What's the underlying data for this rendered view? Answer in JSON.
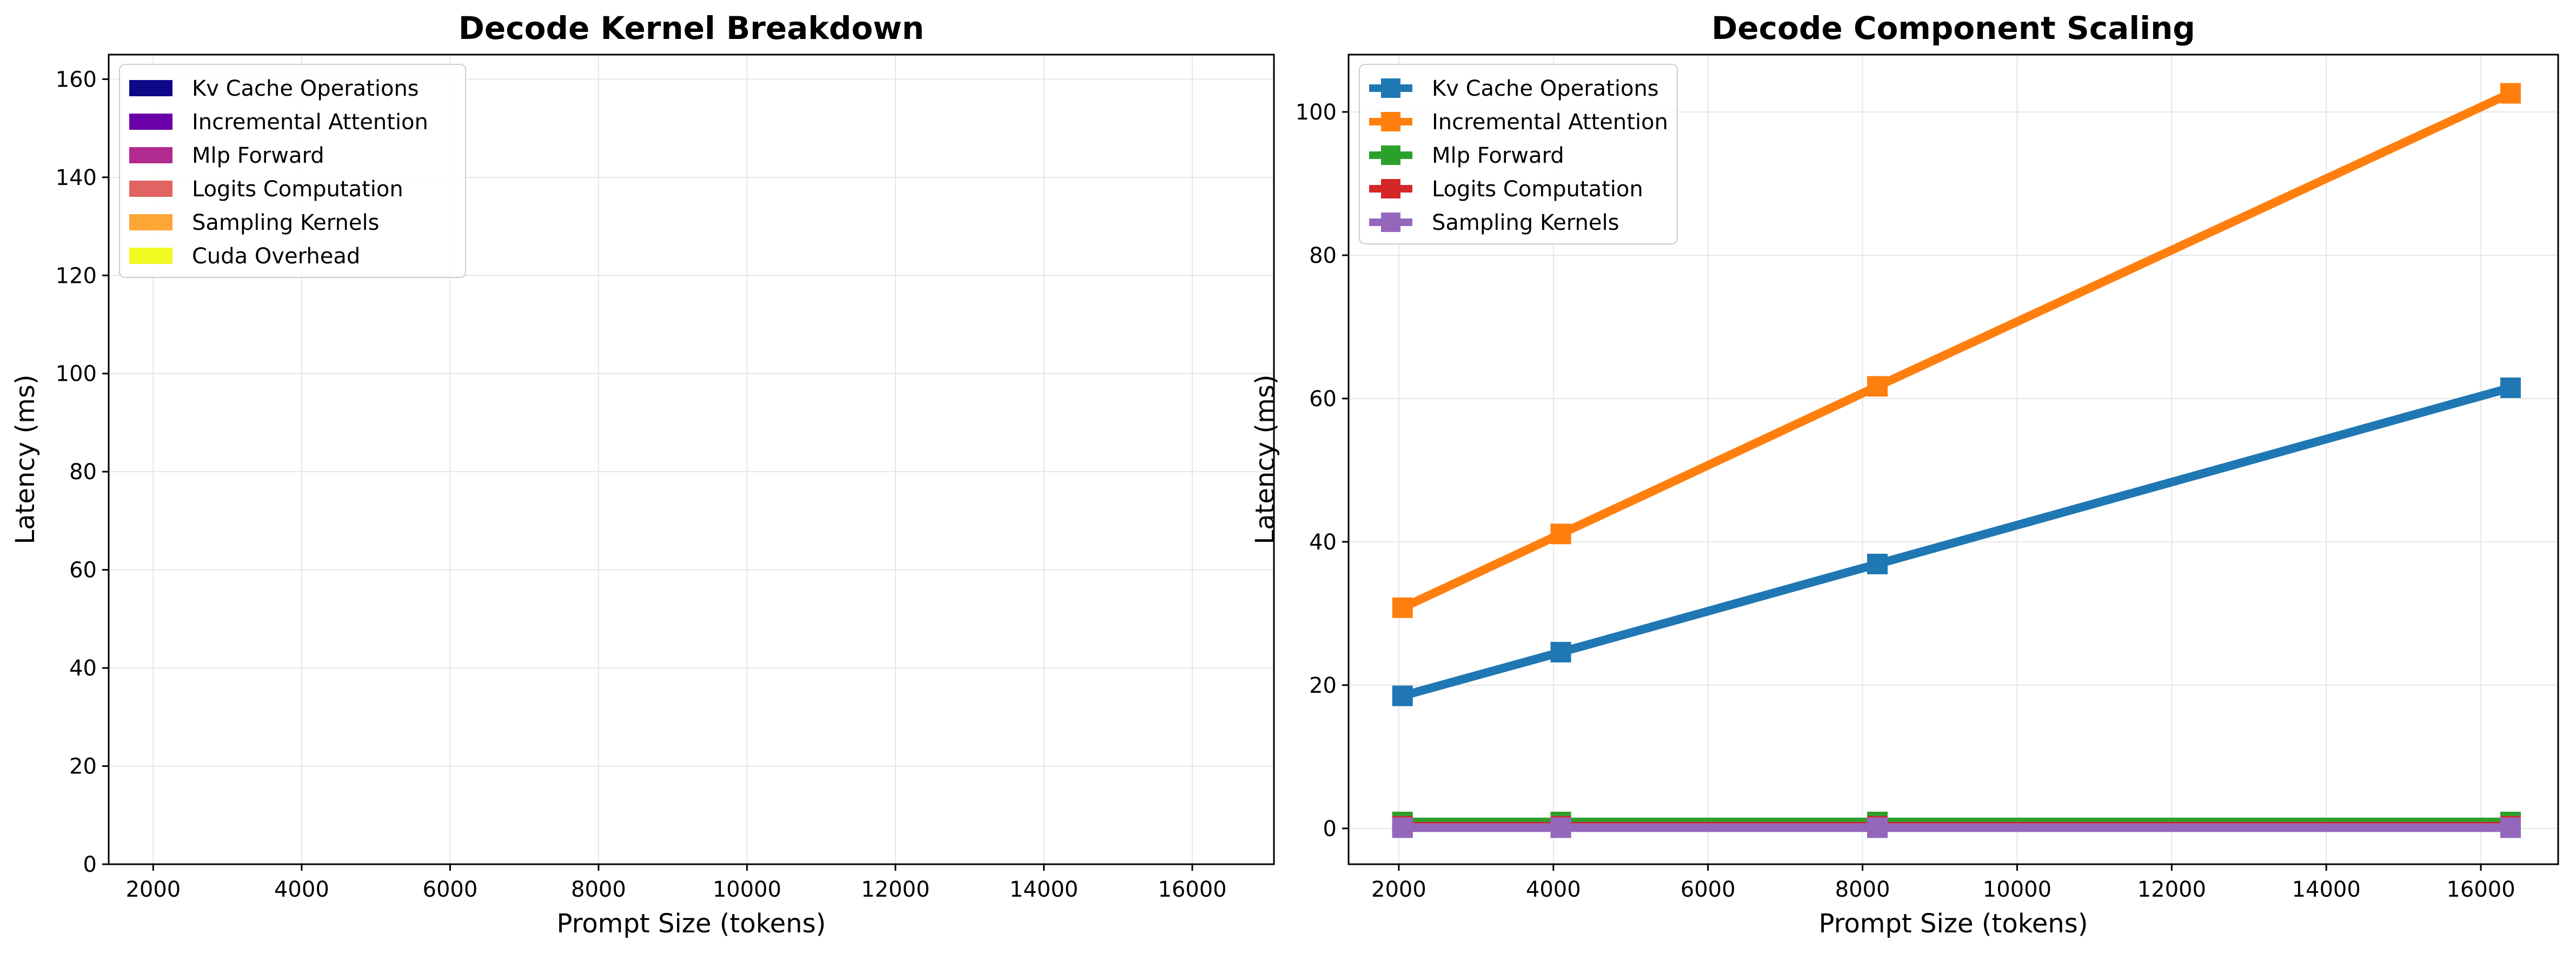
{
  "chart_data": [
    {
      "type": "area",
      "title": "Decode Kernel Breakdown",
      "xlabel": "Prompt Size (tokens)",
      "ylabel": "Latency (ms)",
      "xlim": [
        1400,
        17100
      ],
      "ylim": [
        0,
        165
      ],
      "xticks": [
        2000,
        4000,
        6000,
        8000,
        10000,
        12000,
        14000,
        16000
      ],
      "yticks": [
        0,
        20,
        40,
        60,
        80,
        100,
        120,
        140,
        160
      ],
      "grid": true,
      "legend_position": "top-left",
      "legend_style": "patch",
      "series": [
        {
          "name": "Kv Cache Operations",
          "color": "#0d0887"
        },
        {
          "name": "Incremental Attention",
          "color": "#6a00a8"
        },
        {
          "name": "Mlp Forward",
          "color": "#b12a90"
        },
        {
          "name": "Logits Computation",
          "color": "#e16462"
        },
        {
          "name": "Sampling Kernels",
          "color": "#fca636"
        },
        {
          "name": "Cuda Overhead",
          "color": "#f0f921"
        }
      ]
    },
    {
      "type": "line",
      "title": "Decode Component Scaling",
      "xlabel": "Prompt Size (tokens)",
      "ylabel": "Latency (ms)",
      "xlim": [
        1350,
        17000
      ],
      "ylim": [
        -5,
        108
      ],
      "xticks": [
        2000,
        4000,
        6000,
        8000,
        10000,
        12000,
        14000,
        16000
      ],
      "yticks": [
        0,
        20,
        40,
        60,
        80,
        100
      ],
      "grid": true,
      "legend_position": "top-left",
      "legend_style": "line-marker",
      "x": [
        2048,
        4096,
        8192,
        16384
      ],
      "series": [
        {
          "name": "Kv Cache Operations",
          "color": "#1f77b4",
          "values": [
            18.5,
            24.6,
            36.9,
            61.5
          ]
        },
        {
          "name": "Incremental Attention",
          "color": "#ff7f0e",
          "values": [
            30.8,
            41.1,
            61.7,
            102.6
          ]
        },
        {
          "name": "Mlp Forward",
          "color": "#2ca02c",
          "values": [
            0.9,
            0.9,
            0.9,
            0.9
          ]
        },
        {
          "name": "Logits Computation",
          "color": "#d62728",
          "values": [
            0.3,
            0.3,
            0.3,
            0.3
          ]
        },
        {
          "name": "Sampling Kernels",
          "color": "#9467bd",
          "values": [
            0.1,
            0.1,
            0.1,
            0.1
          ]
        }
      ]
    }
  ]
}
